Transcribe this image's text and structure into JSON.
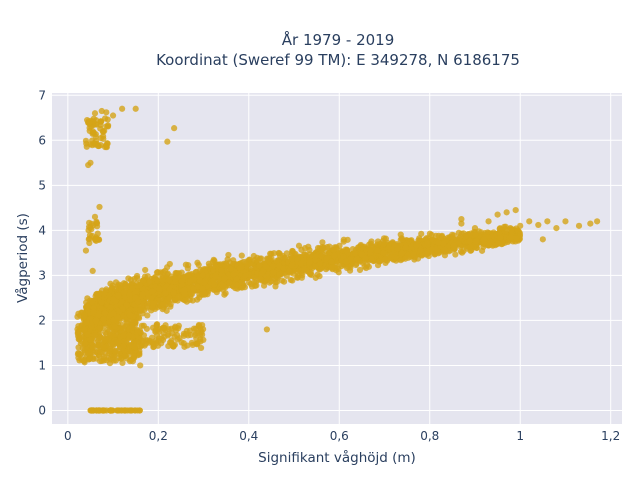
{
  "chart_data": {
    "type": "scatter",
    "title_lines": [
      "År 1979 - 2019",
      "Koordinat (Sweref 99 TM): E 349278, N 6186175"
    ],
    "xlabel": "Signifikant våghöjd (m)",
    "ylabel": "Vågperiod (s)",
    "xlim": [
      -0.035,
      1.225
    ],
    "ylim": [
      -0.3,
      7.05
    ],
    "x_ticks": [
      0,
      0.2,
      0.4,
      0.6,
      0.8,
      1.0,
      1.2
    ],
    "x_tick_labels": [
      "0",
      "0,2",
      "0,4",
      "0,6",
      "0,8",
      "1",
      "1,2"
    ],
    "y_ticks": [
      0,
      1,
      2,
      3,
      4,
      5,
      6,
      7
    ],
    "y_tick_labels": [
      "0",
      "1",
      "2",
      "3",
      "4",
      "5",
      "6",
      "7"
    ],
    "grid": true,
    "marker_color": "#D4A418",
    "background_color": "#E5E5EF",
    "series": [
      {
        "clusters": [
          {
            "x": [
              0.04,
              0.09
            ],
            "y": [
              5.8,
              6.5
            ],
            "n": 60,
            "spread": 0.12
          },
          {
            "x": [
              0.045,
              0.07
            ],
            "y": [
              3.7,
              4.2
            ],
            "n": 25,
            "spread": 0.1
          },
          {
            "x": [
              0.02,
              0.16
            ],
            "y": [
              1.1,
              2.2
            ],
            "n": 400,
            "spread": 0.25
          },
          {
            "x": [
              0.05,
              0.16
            ],
            "y": [
              0,
              0
            ],
            "n": 60,
            "spread": 0.0
          },
          {
            "x": [
              0.1,
              0.3
            ],
            "y": [
              1.4,
              1.9
            ],
            "n": 150,
            "spread": 0.18
          }
        ],
        "band": {
          "x_start": 0.04,
          "x_end": 1.0,
          "y_start": 1.9,
          "y_end": 3.9,
          "width_start": 0.9,
          "width_end": 0.4,
          "n": 3200
        },
        "points": [
          [
            0.06,
            6.6
          ],
          [
            0.075,
            6.65
          ],
          [
            0.085,
            6.62
          ],
          [
            0.1,
            6.55
          ],
          [
            0.12,
            6.7
          ],
          [
            0.15,
            6.7
          ],
          [
            0.235,
            6.27
          ],
          [
            0.22,
            5.97
          ],
          [
            0.05,
            5.5
          ],
          [
            0.045,
            5.45
          ],
          [
            0.07,
            4.52
          ],
          [
            0.06,
            4.3
          ],
          [
            0.055,
            3.1
          ],
          [
            0.04,
            3.55
          ],
          [
            0.44,
            1.8
          ],
          [
            0.29,
            1.9
          ],
          [
            0.16,
            1.0
          ],
          [
            0.87,
            4.25
          ],
          [
            0.87,
            4.15
          ],
          [
            0.9,
            4.05
          ],
          [
            0.93,
            4.2
          ],
          [
            0.95,
            4.35
          ],
          [
            0.97,
            4.4
          ],
          [
            0.99,
            4.45
          ],
          [
            1.0,
            4.1
          ],
          [
            1.02,
            4.2
          ],
          [
            1.04,
            4.12
          ],
          [
            1.06,
            4.2
          ],
          [
            1.08,
            4.05
          ],
          [
            1.1,
            4.2
          ],
          [
            1.13,
            4.1
          ],
          [
            1.155,
            4.15
          ],
          [
            1.17,
            4.2
          ],
          [
            1.05,
            3.8
          ],
          [
            0.98,
            3.85
          ],
          [
            0.92,
            3.8
          ]
        ]
      }
    ]
  }
}
